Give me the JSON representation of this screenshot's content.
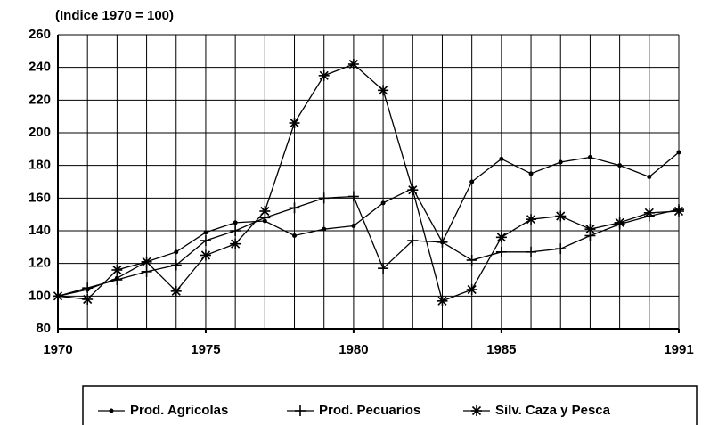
{
  "chart_data": {
    "type": "line",
    "title": "(Indice 1970 = 100)",
    "x": [
      1970,
      1971,
      1972,
      1973,
      1974,
      1975,
      1976,
      1977,
      1978,
      1979,
      1980,
      1981,
      1982,
      1983,
      1984,
      1985,
      1986,
      1987,
      1988,
      1989,
      1990,
      1991
    ],
    "series": [
      {
        "name": "Prod. Agricolas",
        "color": "#000000",
        "marker": "dot",
        "values": [
          100,
          104,
          111,
          121,
          127,
          139,
          145,
          146,
          137,
          141,
          143,
          157,
          166,
          133,
          170,
          184,
          175,
          182,
          185,
          180,
          173,
          188
        ]
      },
      {
        "name": "Prod. Pecuarios",
        "color": "#000000",
        "marker": "plus",
        "values": [
          100,
          105,
          110,
          115,
          119,
          134,
          140,
          148,
          154,
          160,
          161,
          117,
          134,
          133,
          122,
          127,
          127,
          129,
          137,
          144,
          149,
          153
        ]
      },
      {
        "name": "Silv. Caza y Pesca",
        "color": "#000000",
        "marker": "star",
        "values": [
          100,
          98,
          116,
          121,
          103,
          125,
          132,
          152,
          206,
          235,
          242,
          226,
          165,
          97,
          104,
          136,
          147,
          149,
          141,
          145,
          151,
          152
        ]
      }
    ],
    "xlim": [
      1970,
      1991
    ],
    "xticks": [
      1970,
      1975,
      1980,
      1985,
      1991
    ],
    "xgrid": [
      1971,
      1972,
      1973,
      1974,
      1975,
      1976,
      1977,
      1978,
      1979,
      1980,
      1981,
      1982,
      1983,
      1984,
      1985,
      1986,
      1987,
      1988,
      1989,
      1990,
      1991
    ],
    "ylim": [
      80,
      260
    ],
    "yticks": [
      80,
      100,
      120,
      140,
      160,
      180,
      200,
      220,
      240,
      260
    ],
    "grid": true,
    "legend": "bottom"
  }
}
